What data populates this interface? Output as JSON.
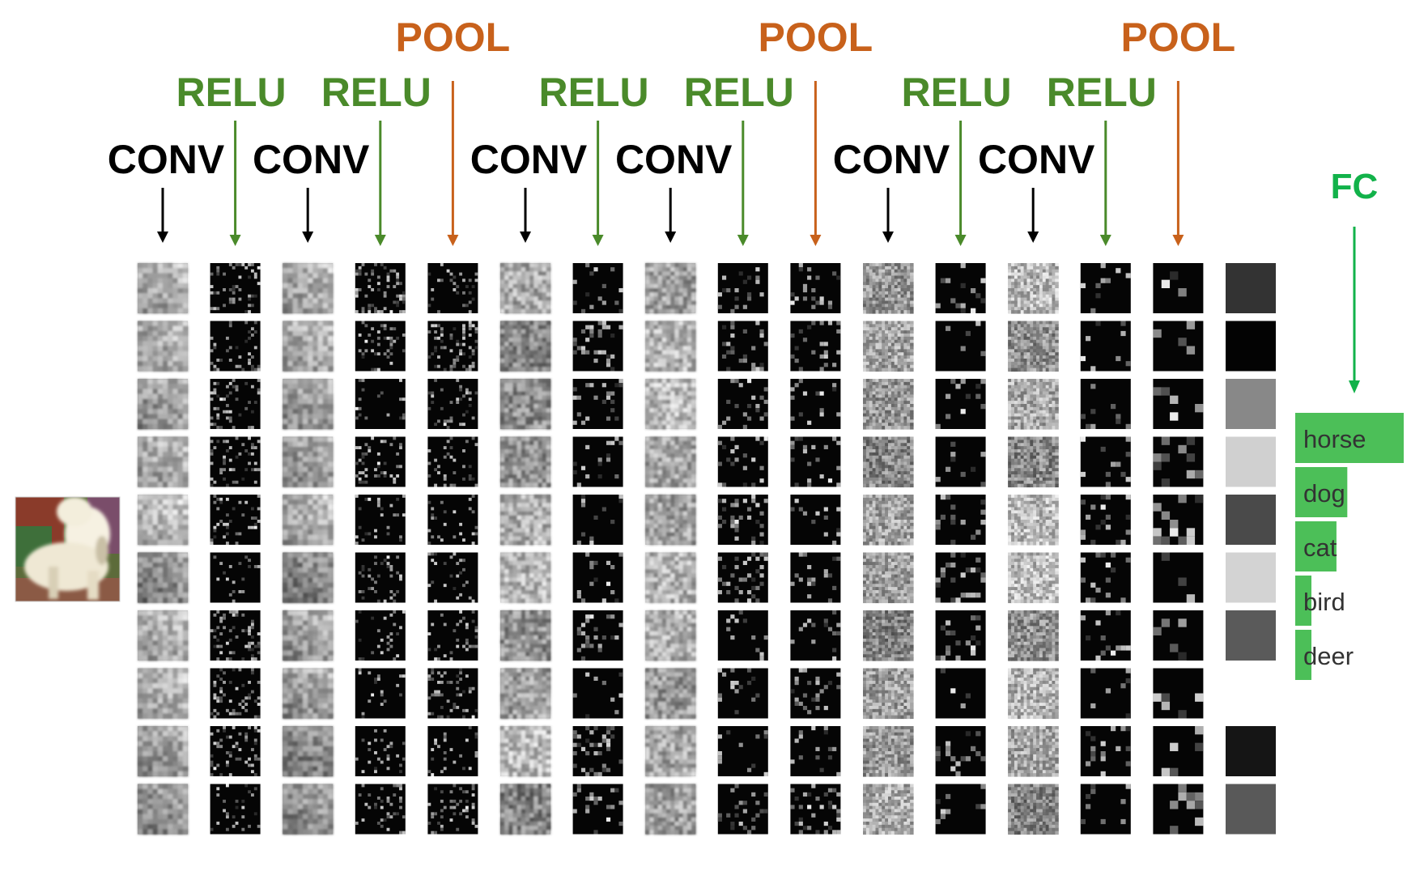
{
  "colors": {
    "conv": "#000000",
    "relu": "#4a8a2a",
    "pool": "#c8611b",
    "fc": "#12b24a",
    "bar": "#4cbf58"
  },
  "labels": {
    "conv": "CONV",
    "relu": "RELU",
    "pool": "POOL",
    "fc": "FC"
  },
  "input_image": "white-poodle-dog-photo",
  "layers": [
    {
      "type": "conv",
      "label": "CONV"
    },
    {
      "type": "relu",
      "label": "RELU"
    },
    {
      "type": "conv",
      "label": "CONV"
    },
    {
      "type": "relu",
      "label": "RELU"
    },
    {
      "type": "pool",
      "label": "POOL"
    },
    {
      "type": "conv",
      "label": "CONV"
    },
    {
      "type": "relu",
      "label": "RELU"
    },
    {
      "type": "conv",
      "label": "CONV"
    },
    {
      "type": "relu",
      "label": "RELU"
    },
    {
      "type": "pool",
      "label": "POOL"
    },
    {
      "type": "conv",
      "label": "CONV"
    },
    {
      "type": "relu",
      "label": "RELU"
    },
    {
      "type": "conv",
      "label": "CONV"
    },
    {
      "type": "relu",
      "label": "RELU"
    },
    {
      "type": "pool",
      "label": "POOL"
    },
    {
      "type": "fc",
      "label": ""
    }
  ],
  "feature_maps_per_layer": 10,
  "fc_shades": [
    "#333333",
    "#030303",
    "#888888",
    "#d0d0d0",
    "#4a4a4a",
    "#d3d3d3",
    "#5a5a5a",
    null,
    "#151515",
    "#595959"
  ],
  "class_scores": [
    {
      "label": "horse",
      "score": 1.0
    },
    {
      "label": "dog",
      "score": 0.48
    },
    {
      "label": "cat",
      "score": 0.38
    },
    {
      "label": "bird",
      "score": 0.14
    },
    {
      "label": "deer",
      "score": 0.14
    }
  ]
}
